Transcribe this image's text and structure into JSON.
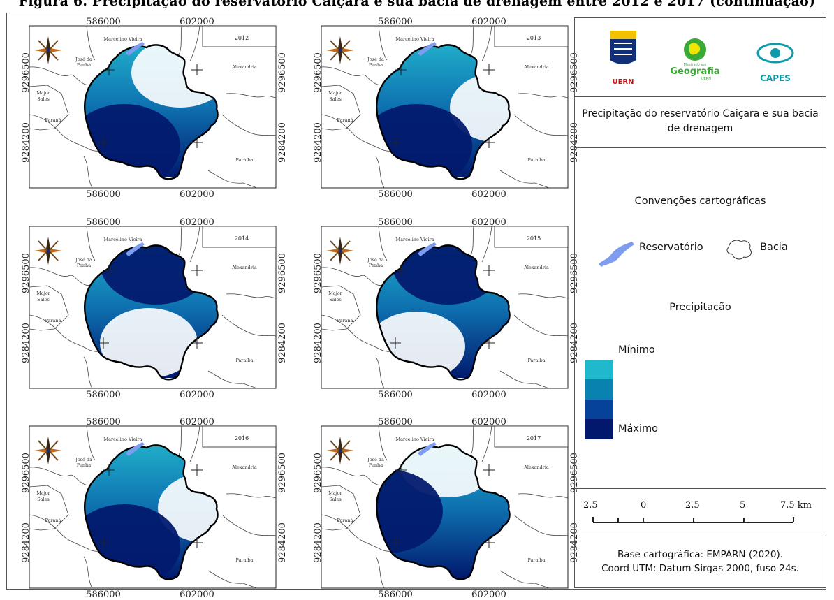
{
  "caption": "Figura 6. Precipitação do reservatório Caiçara e sua bacia de drenagem entre 2012 e 2017 (continuação)",
  "coords": {
    "x1": "586000",
    "x2": "602000",
    "y1": "9296500",
    "y2": "9284200"
  },
  "towns": {
    "marcelino": "Marcelino Vieira",
    "jose1": "José da",
    "jose2": "Penha",
    "alexandria": "Alexandria",
    "major1": "Major",
    "major2": "Sales",
    "parana": "Paraná",
    "paraiba": "Paraíba"
  },
  "panels": [
    {
      "year": "2012",
      "low": "north-east",
      "high": "south-west"
    },
    {
      "year": "2013",
      "low": "east",
      "high": "south-west"
    },
    {
      "year": "2014",
      "low": "south",
      "high": "north"
    },
    {
      "year": "2015",
      "low": "south-west",
      "high": "north"
    },
    {
      "year": "2016",
      "low": "east",
      "high": "south-west"
    },
    {
      "year": "2017",
      "low": "north",
      "high": "west"
    }
  ],
  "legend": {
    "logos": {
      "uern": "UERN",
      "geo_small": "Mestrado em",
      "geo": "Geografia",
      "geo_sub": "UERN",
      "capes": "CAPES"
    },
    "title": "Precipitação do reservatório Caiçara e sua bacia de drenagem",
    "conventions_title": "Convenções cartográficas",
    "reservoir_label": "Reservatório",
    "basin_label": "Bacia",
    "precip_title": "Precipitação",
    "min_label": "Mínimo",
    "max_label": "Máximo",
    "ramp_colors": [
      "#ffffff",
      "#1fb8cc",
      "#0a82b0",
      "#06419a",
      "#02186c"
    ],
    "scale_labels": [
      "2.5",
      "0",
      "2.5",
      "5",
      "7.5 km"
    ],
    "source_line1": "Base cartográfica: EMPARN (2020).",
    "source_line2": "Coord UTM: Datum Sirgas 2000, fuso 24s."
  },
  "colors": {
    "low": "#ffffff",
    "mid": "#22b4cc",
    "high": "#021a6e",
    "reservoir": "#7e9cf0"
  }
}
